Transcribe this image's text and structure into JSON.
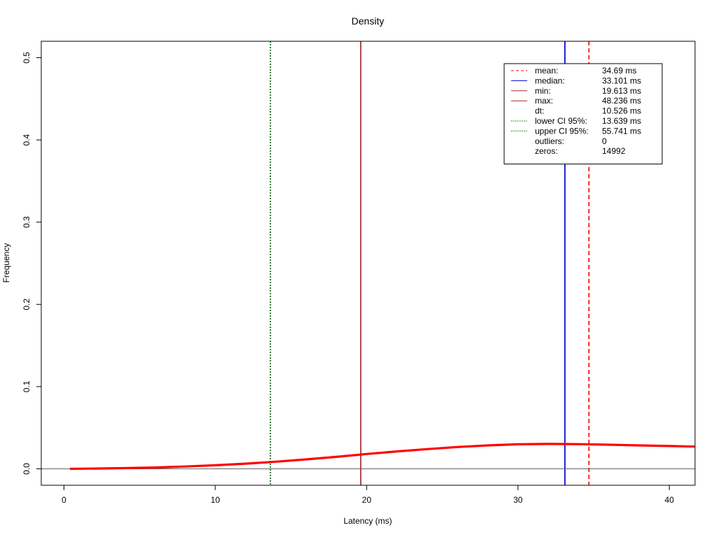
{
  "chart_data": {
    "type": "line",
    "title": "Density",
    "xlabel": "Latency (ms)",
    "ylabel": "Frequency",
    "xlim": [
      -1.5,
      41.7
    ],
    "ylim": [
      -0.02,
      0.52
    ],
    "x_ticks": [
      0,
      10,
      20,
      30,
      40
    ],
    "x_tick_labels": [
      "0",
      "10",
      "20",
      "30",
      "40"
    ],
    "y_ticks": [
      0.0,
      0.1,
      0.2,
      0.3,
      0.4,
      0.5
    ],
    "y_tick_labels": [
      "0.0",
      "0.1",
      "0.2",
      "0.3",
      "0.4",
      "0.5"
    ],
    "grid": false,
    "baseline": 0,
    "series": [
      {
        "color": "#ff0000",
        "x": [
          0.4,
          2,
          4,
          6,
          8,
          10,
          12,
          14,
          16,
          18,
          20,
          22,
          24,
          26,
          28,
          30,
          32,
          34,
          36,
          38,
          40,
          41.7
        ],
        "y": [
          0.0,
          0.0003,
          0.0008,
          0.0016,
          0.0028,
          0.0043,
          0.0063,
          0.0087,
          0.0115,
          0.0145,
          0.018,
          0.0212,
          0.024,
          0.0265,
          0.0285,
          0.0298,
          0.0303,
          0.03,
          0.0293,
          0.0285,
          0.0277,
          0.027
        ]
      }
    ],
    "reference_lines": [
      {
        "key": "lower_ci",
        "x": 13.639,
        "color": "#006400",
        "style": "dotted"
      },
      {
        "key": "min",
        "x": 19.613,
        "color": "#a52a2a",
        "style": "solid"
      },
      {
        "key": "median",
        "x": 33.101,
        "color": "#0000cd",
        "style": "solid"
      },
      {
        "key": "mean",
        "x": 34.69,
        "color": "#ff0000",
        "style": "dashed"
      }
    ],
    "legend": {
      "placement": "top-right",
      "entries": [
        {
          "label": "mean:",
          "value": "34.69 ms",
          "line": "dashed",
          "color": "#ff0000"
        },
        {
          "label": "median:",
          "value": "33.101 ms",
          "line": "solid",
          "color": "#0000cd"
        },
        {
          "label": "min:",
          "value": "19.613 ms",
          "line": "solid",
          "color": "#a52a2a"
        },
        {
          "label": "max:",
          "value": "48.236 ms",
          "line": "solid",
          "color": "#a52a2a"
        },
        {
          "label": "dt:",
          "value": "10.526 ms",
          "line": "none",
          "color": ""
        },
        {
          "label": "lower CI 95%:",
          "value": "13.639 ms",
          "line": "dotted",
          "color": "#006400"
        },
        {
          "label": "upper CI 95%:",
          "value": "55.741 ms",
          "line": "dotted",
          "color": "#006400"
        },
        {
          "label": "outliers:",
          "value": "0",
          "line": "none",
          "color": ""
        },
        {
          "label": "zeros:",
          "value": "14992",
          "line": "none",
          "color": ""
        }
      ]
    }
  }
}
